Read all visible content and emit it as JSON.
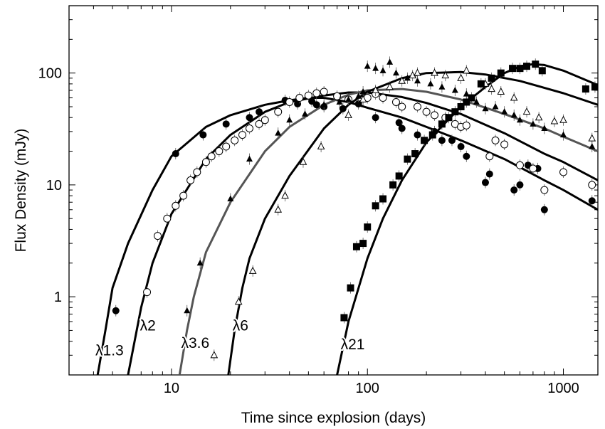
{
  "chart_data": {
    "type": "scatter",
    "title": "",
    "xlabel": "Time since explosion (days)",
    "ylabel": "Flux Density (mJy)",
    "xscale": "log",
    "yscale": "log",
    "xlim": [
      3,
      1500
    ],
    "ylim": [
      0.2,
      400
    ],
    "xticks": [
      10,
      100,
      1000
    ],
    "xtick_labels": [
      "10",
      "100",
      "1000"
    ],
    "yticks": [
      1,
      10,
      100
    ],
    "ytick_labels": [
      "1",
      "10",
      "100"
    ],
    "grid": false,
    "legend": "none",
    "series": [
      {
        "name": "λ1.3",
        "marker": "filled-circle",
        "curve_color": "#000000",
        "curve": [
          [
            4.2,
            0.2
          ],
          [
            4.6,
            0.5
          ],
          [
            5.0,
            1.2
          ],
          [
            6.0,
            3.0
          ],
          [
            8.0,
            9.0
          ],
          [
            10,
            18
          ],
          [
            15,
            33
          ],
          [
            20,
            42
          ],
          [
            30,
            52
          ],
          [
            40,
            57
          ],
          [
            50,
            60
          ],
          [
            60,
            60
          ],
          [
            80,
            55
          ],
          [
            100,
            49
          ],
          [
            150,
            40
          ],
          [
            200,
            33
          ],
          [
            300,
            25
          ],
          [
            500,
            17
          ],
          [
            800,
            11
          ],
          [
            1000,
            9
          ],
          [
            1500,
            6
          ]
        ],
        "points": [
          [
            5.2,
            0.75
          ],
          [
            10.5,
            19
          ],
          [
            14.5,
            28
          ],
          [
            19,
            35
          ],
          [
            25,
            40
          ],
          [
            28,
            45
          ],
          [
            38,
            57
          ],
          [
            44,
            53
          ],
          [
            52,
            56
          ],
          [
            55,
            52
          ],
          [
            60,
            50
          ],
          [
            75,
            48
          ],
          [
            90,
            53
          ],
          [
            110,
            40
          ],
          [
            145,
            36
          ],
          [
            150,
            32
          ],
          [
            180,
            28
          ],
          [
            220,
            30
          ],
          [
            240,
            25
          ],
          [
            270,
            25
          ],
          [
            300,
            22
          ],
          [
            320,
            18
          ],
          [
            400,
            10.5
          ],
          [
            420,
            12.5
          ],
          [
            560,
            9
          ],
          [
            600,
            10
          ],
          [
            660,
            15
          ],
          [
            740,
            14
          ],
          [
            800,
            6
          ],
          [
            1400,
            7.2
          ]
        ]
      },
      {
        "name": "λ2",
        "marker": "open-circle",
        "curve_color": "#000000",
        "curve": [
          [
            6.0,
            0.2
          ],
          [
            7.0,
            0.8
          ],
          [
            8.0,
            2.0
          ],
          [
            10,
            5.5
          ],
          [
            15,
            17
          ],
          [
            20,
            28
          ],
          [
            30,
            45
          ],
          [
            40,
            55
          ],
          [
            60,
            63
          ],
          [
            80,
            67
          ],
          [
            100,
            67
          ],
          [
            150,
            61
          ],
          [
            200,
            54
          ],
          [
            300,
            43
          ],
          [
            500,
            29
          ],
          [
            800,
            19
          ],
          [
            1000,
            16
          ],
          [
            1500,
            11
          ]
        ],
        "points": [
          [
            7.5,
            1.1
          ],
          [
            8.5,
            3.5
          ],
          [
            9.5,
            5
          ],
          [
            10.5,
            6.5
          ],
          [
            11.5,
            8
          ],
          [
            12.5,
            11
          ],
          [
            13.5,
            13
          ],
          [
            15,
            16
          ],
          [
            16,
            18
          ],
          [
            17.5,
            20
          ],
          [
            19,
            22
          ],
          [
            21,
            25
          ],
          [
            23,
            28
          ],
          [
            25,
            32
          ],
          [
            28,
            35
          ],
          [
            30,
            38
          ],
          [
            35,
            45
          ],
          [
            40,
            55
          ],
          [
            45,
            60
          ],
          [
            50,
            63
          ],
          [
            55,
            66
          ],
          [
            60,
            68
          ],
          [
            70,
            62
          ],
          [
            80,
            58
          ],
          [
            100,
            60
          ],
          [
            110,
            65
          ],
          [
            120,
            60
          ],
          [
            140,
            55
          ],
          [
            150,
            50
          ],
          [
            180,
            50
          ],
          [
            200,
            45
          ],
          [
            220,
            42
          ],
          [
            250,
            40
          ],
          [
            280,
            35
          ],
          [
            300,
            33
          ],
          [
            320,
            34
          ],
          [
            420,
            18
          ],
          [
            450,
            25
          ],
          [
            500,
            23
          ],
          [
            600,
            15
          ],
          [
            700,
            14
          ],
          [
            800,
            9
          ],
          [
            1000,
            13
          ],
          [
            1400,
            10
          ]
        ]
      },
      {
        "name": "λ3.6",
        "marker": "filled-triangle",
        "curve_color": "#555555",
        "curve": [
          [
            11,
            0.2
          ],
          [
            12,
            0.5
          ],
          [
            13,
            1.0
          ],
          [
            15,
            2.5
          ],
          [
            20,
            7.0
          ],
          [
            30,
            20
          ],
          [
            40,
            33
          ],
          [
            60,
            52
          ],
          [
            80,
            64
          ],
          [
            100,
            70
          ],
          [
            150,
            72
          ],
          [
            200,
            68
          ],
          [
            300,
            58
          ],
          [
            500,
            43
          ],
          [
            800,
            32
          ],
          [
            1000,
            27
          ],
          [
            1500,
            20
          ]
        ],
        "points": [
          [
            12,
            0.75
          ],
          [
            14,
            2
          ],
          [
            20,
            7.5
          ],
          [
            25,
            17
          ],
          [
            35,
            29
          ],
          [
            40,
            38
          ],
          [
            48,
            43
          ],
          [
            60,
            52
          ],
          [
            72,
            55
          ],
          [
            80,
            58
          ],
          [
            90,
            62
          ],
          [
            95,
            68
          ],
          [
            100,
            115
          ],
          [
            110,
            110
          ],
          [
            120,
            105
          ],
          [
            130,
            125
          ],
          [
            140,
            100
          ],
          [
            160,
            90
          ],
          [
            180,
            85
          ],
          [
            210,
            80
          ],
          [
            240,
            75
          ],
          [
            280,
            70
          ],
          [
            320,
            65
          ],
          [
            360,
            55
          ],
          [
            400,
            48
          ],
          [
            450,
            50
          ],
          [
            500,
            45
          ],
          [
            560,
            42
          ],
          [
            600,
            38
          ],
          [
            700,
            35
          ],
          [
            800,
            32
          ],
          [
            1000,
            28
          ],
          [
            1400,
            22
          ]
        ]
      },
      {
        "name": "λ6",
        "marker": "open-triangle",
        "curve_color": "#000000",
        "curve": [
          [
            19.5,
            0.2
          ],
          [
            21,
            0.5
          ],
          [
            23,
            1.2
          ],
          [
            25,
            2.2
          ],
          [
            30,
            5.0
          ],
          [
            40,
            12
          ],
          [
            60,
            32
          ],
          [
            80,
            52
          ],
          [
            100,
            68
          ],
          [
            150,
            90
          ],
          [
            200,
            100
          ],
          [
            300,
            102
          ],
          [
            400,
            97
          ],
          [
            600,
            85
          ],
          [
            1000,
            66
          ],
          [
            1500,
            52
          ]
        ],
        "points": [
          [
            16.5,
            0.3
          ],
          [
            22,
            0.9
          ],
          [
            26,
            1.7
          ],
          [
            35,
            6
          ],
          [
            38,
            8
          ],
          [
            47,
            16
          ],
          [
            58,
            22
          ],
          [
            80,
            42
          ],
          [
            95,
            58
          ],
          [
            110,
            70
          ],
          [
            130,
            75
          ],
          [
            150,
            85
          ],
          [
            170,
            95
          ],
          [
            180,
            100
          ],
          [
            220,
            100
          ],
          [
            250,
            95
          ],
          [
            300,
            90
          ],
          [
            320,
            105
          ],
          [
            400,
            80
          ],
          [
            430,
            72
          ],
          [
            480,
            68
          ],
          [
            560,
            60
          ],
          [
            650,
            45
          ],
          [
            750,
            40
          ],
          [
            900,
            37
          ],
          [
            1000,
            38
          ],
          [
            1400,
            26
          ]
        ]
      },
      {
        "name": "λ21",
        "marker": "filled-square",
        "curve_color": "#000000",
        "curve": [
          [
            70,
            0.2
          ],
          [
            80,
            0.6
          ],
          [
            100,
            2.2
          ],
          [
            120,
            5.0
          ],
          [
            150,
            11
          ],
          [
            200,
            24
          ],
          [
            300,
            50
          ],
          [
            400,
            75
          ],
          [
            500,
            100
          ],
          [
            600,
            115
          ],
          [
            700,
            120
          ],
          [
            800,
            118
          ],
          [
            1000,
            105
          ],
          [
            1500,
            78
          ]
        ],
        "points": [
          [
            76,
            0.65
          ],
          [
            82,
            1.2
          ],
          [
            88,
            2.8
          ],
          [
            95,
            3.0
          ],
          [
            100,
            4.2
          ],
          [
            110,
            6.5
          ],
          [
            120,
            7.5
          ],
          [
            135,
            10
          ],
          [
            145,
            12
          ],
          [
            160,
            17
          ],
          [
            175,
            19
          ],
          [
            195,
            25
          ],
          [
            215,
            28
          ],
          [
            240,
            35
          ],
          [
            260,
            40
          ],
          [
            280,
            45
          ],
          [
            300,
            50
          ],
          [
            320,
            55
          ],
          [
            340,
            60
          ],
          [
            380,
            80
          ],
          [
            430,
            90
          ],
          [
            480,
            100
          ],
          [
            550,
            110
          ],
          [
            600,
            110
          ],
          [
            650,
            115
          ],
          [
            720,
            120
          ],
          [
            780,
            105
          ],
          [
            1300,
            72
          ],
          [
            1450,
            75
          ]
        ]
      }
    ]
  }
}
